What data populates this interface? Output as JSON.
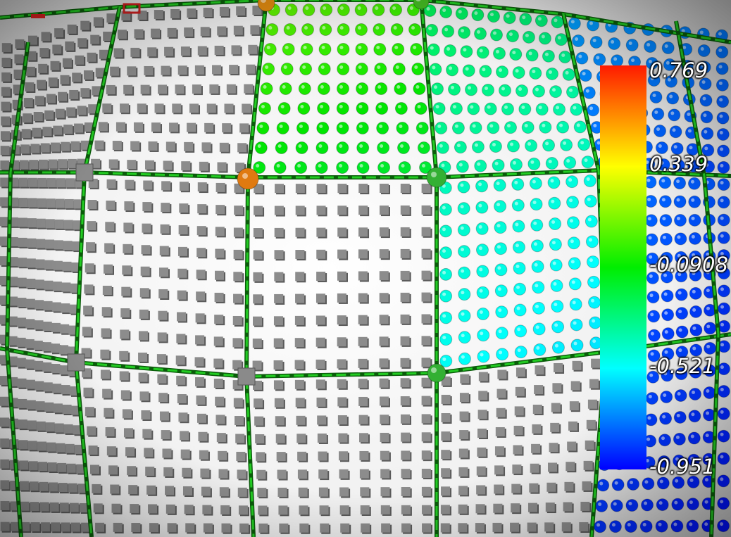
{
  "scalar_bar": {
    "orientation": "vertical",
    "range": [
      -0.951,
      0.769
    ],
    "colormap": "rainbow",
    "colors": {
      "max": "#ff1a00",
      "mid_high": "#ffff00",
      "mid": "#00ee00",
      "mid_low": "#00ffff",
      "min": "#0000ff"
    },
    "tick_labels": [
      "0.769",
      "0.339",
      "-0.0908",
      "-0.521",
      "-0.951"
    ]
  },
  "scene": {
    "background": "#d9d9d9",
    "surface_color": "#f5f5f5",
    "box_glyph_color": "#8c8c8c",
    "edge_color": "#22cc22",
    "glyph_types": [
      "cube-glyph",
      "sphere-glyph"
    ]
  }
}
